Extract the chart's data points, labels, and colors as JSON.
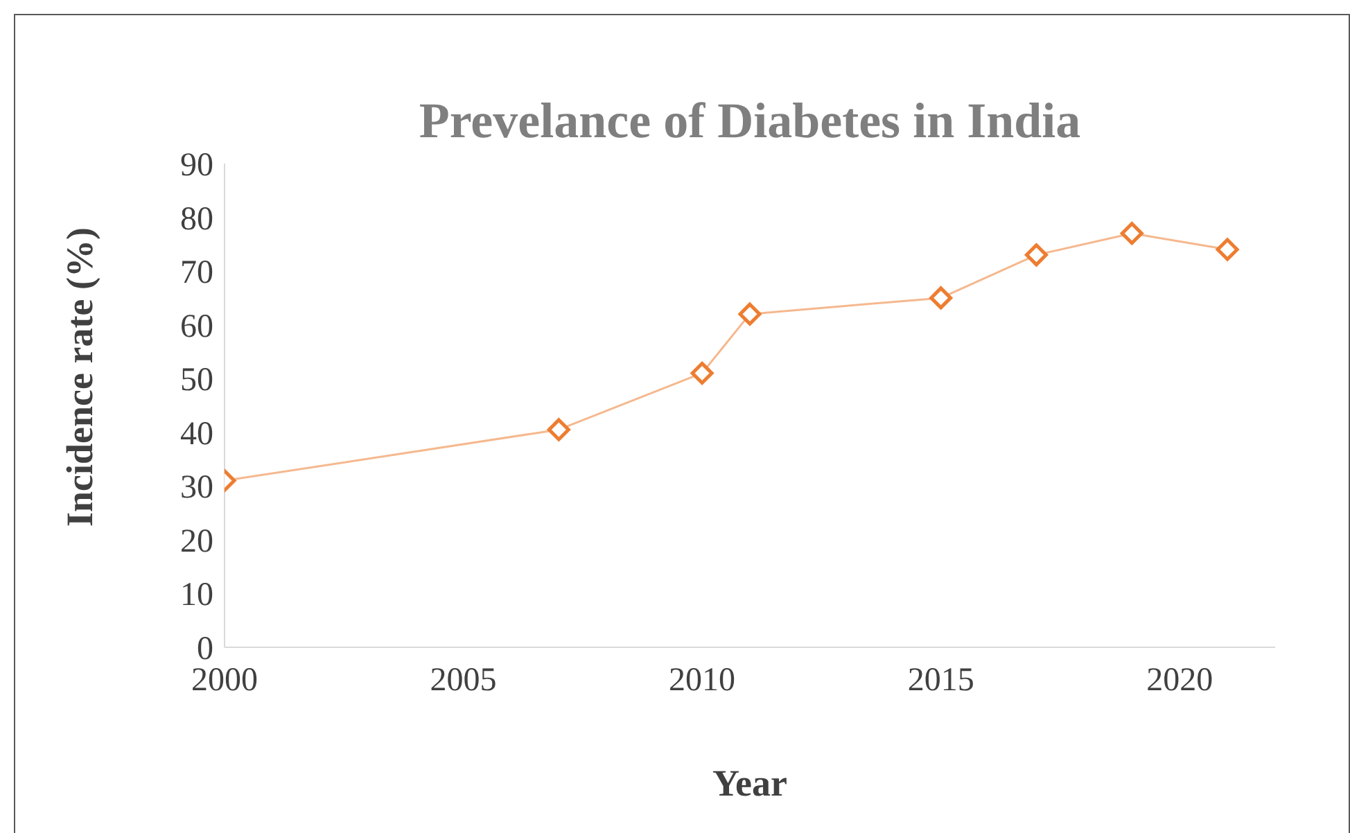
{
  "chart_data": {
    "type": "line",
    "title": "Prevelance of Diabetes in India",
    "xlabel": "Year",
    "ylabel": "Incidence rate (%)",
    "x": [
      2000,
      2007,
      2010,
      2011,
      2015,
      2017,
      2019,
      2021
    ],
    "series": [
      {
        "color": "#ed7d31",
        "values": [
          31,
          40.5,
          51,
          62,
          65,
          73,
          77,
          74
        ]
      }
    ],
    "xlim": [
      2000,
      2022
    ],
    "xticks": [
      2000,
      2005,
      2010,
      2015,
      2020
    ],
    "ylim": [
      0,
      90
    ],
    "yticks": [
      0,
      10,
      20,
      30,
      40,
      50,
      60,
      70,
      80,
      90
    ],
    "grid": false,
    "legend": false,
    "marker": "diamond",
    "line_style": "solid"
  }
}
